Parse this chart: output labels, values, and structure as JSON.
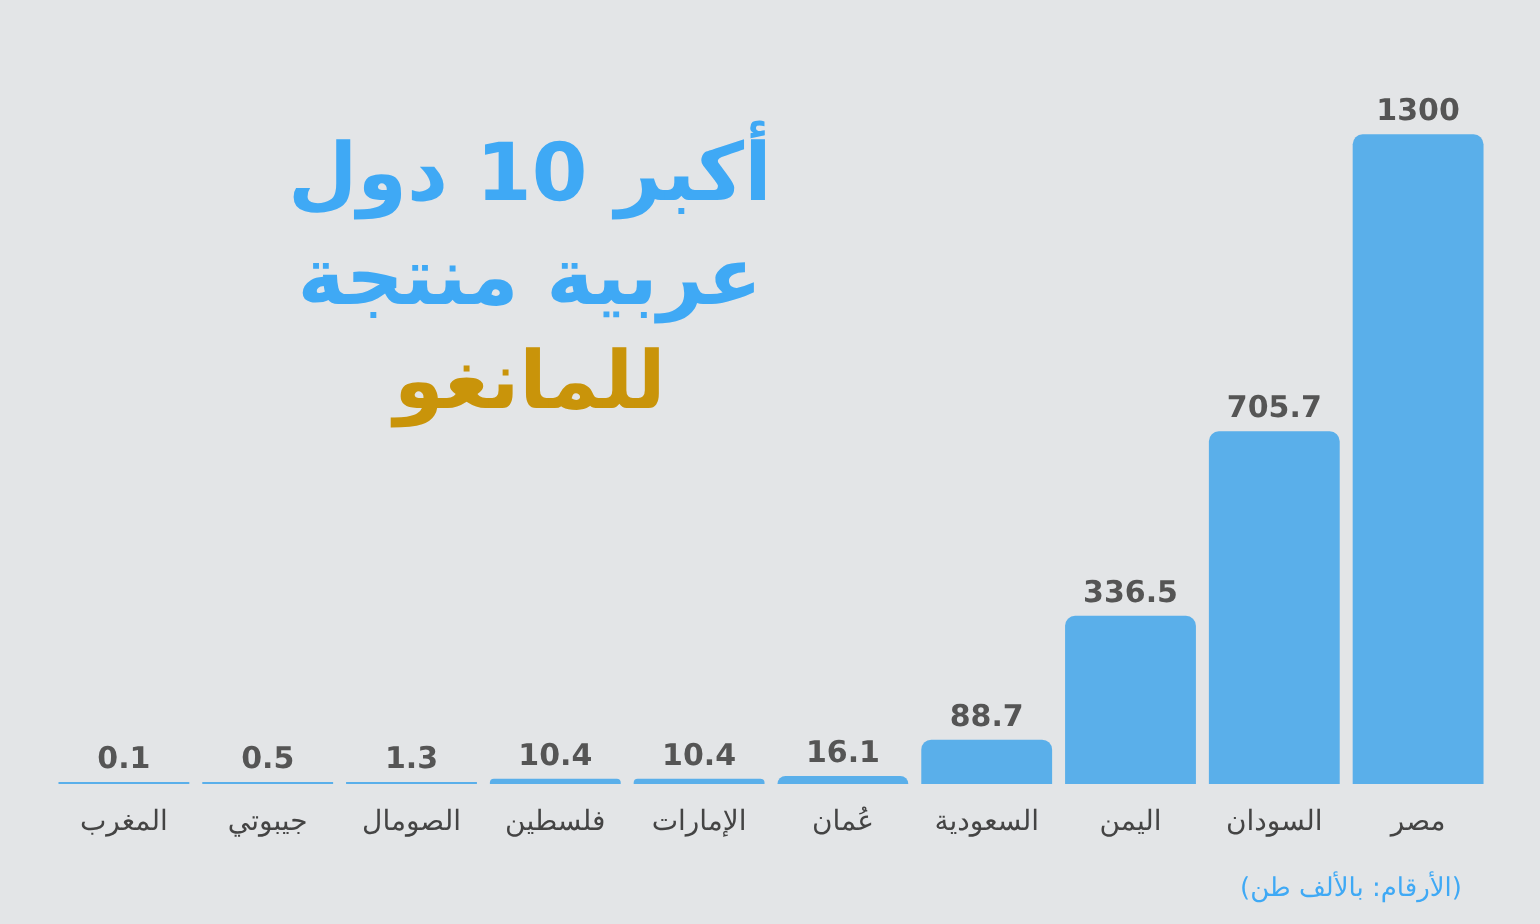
{
  "chart_data": {
    "type": "bar",
    "title": "أكبر 10 دول\nعربية منتجة\nللمانغو",
    "categories": [
      "المغرب",
      "جيبوتي",
      "الصومال",
      "فلسطين",
      "الإمارات",
      "عُمان",
      "السعودية",
      "اليمن",
      "السودان",
      "مصر"
    ],
    "values": [
      0.1,
      0.5,
      1.3,
      10.4,
      10.4,
      16.1,
      88.7,
      336.5,
      705.7,
      1300
    ],
    "color": "#5aafea",
    "data_labels": true,
    "annotations": [
      "(الأرقام: بالألف طن)"
    ]
  }
}
